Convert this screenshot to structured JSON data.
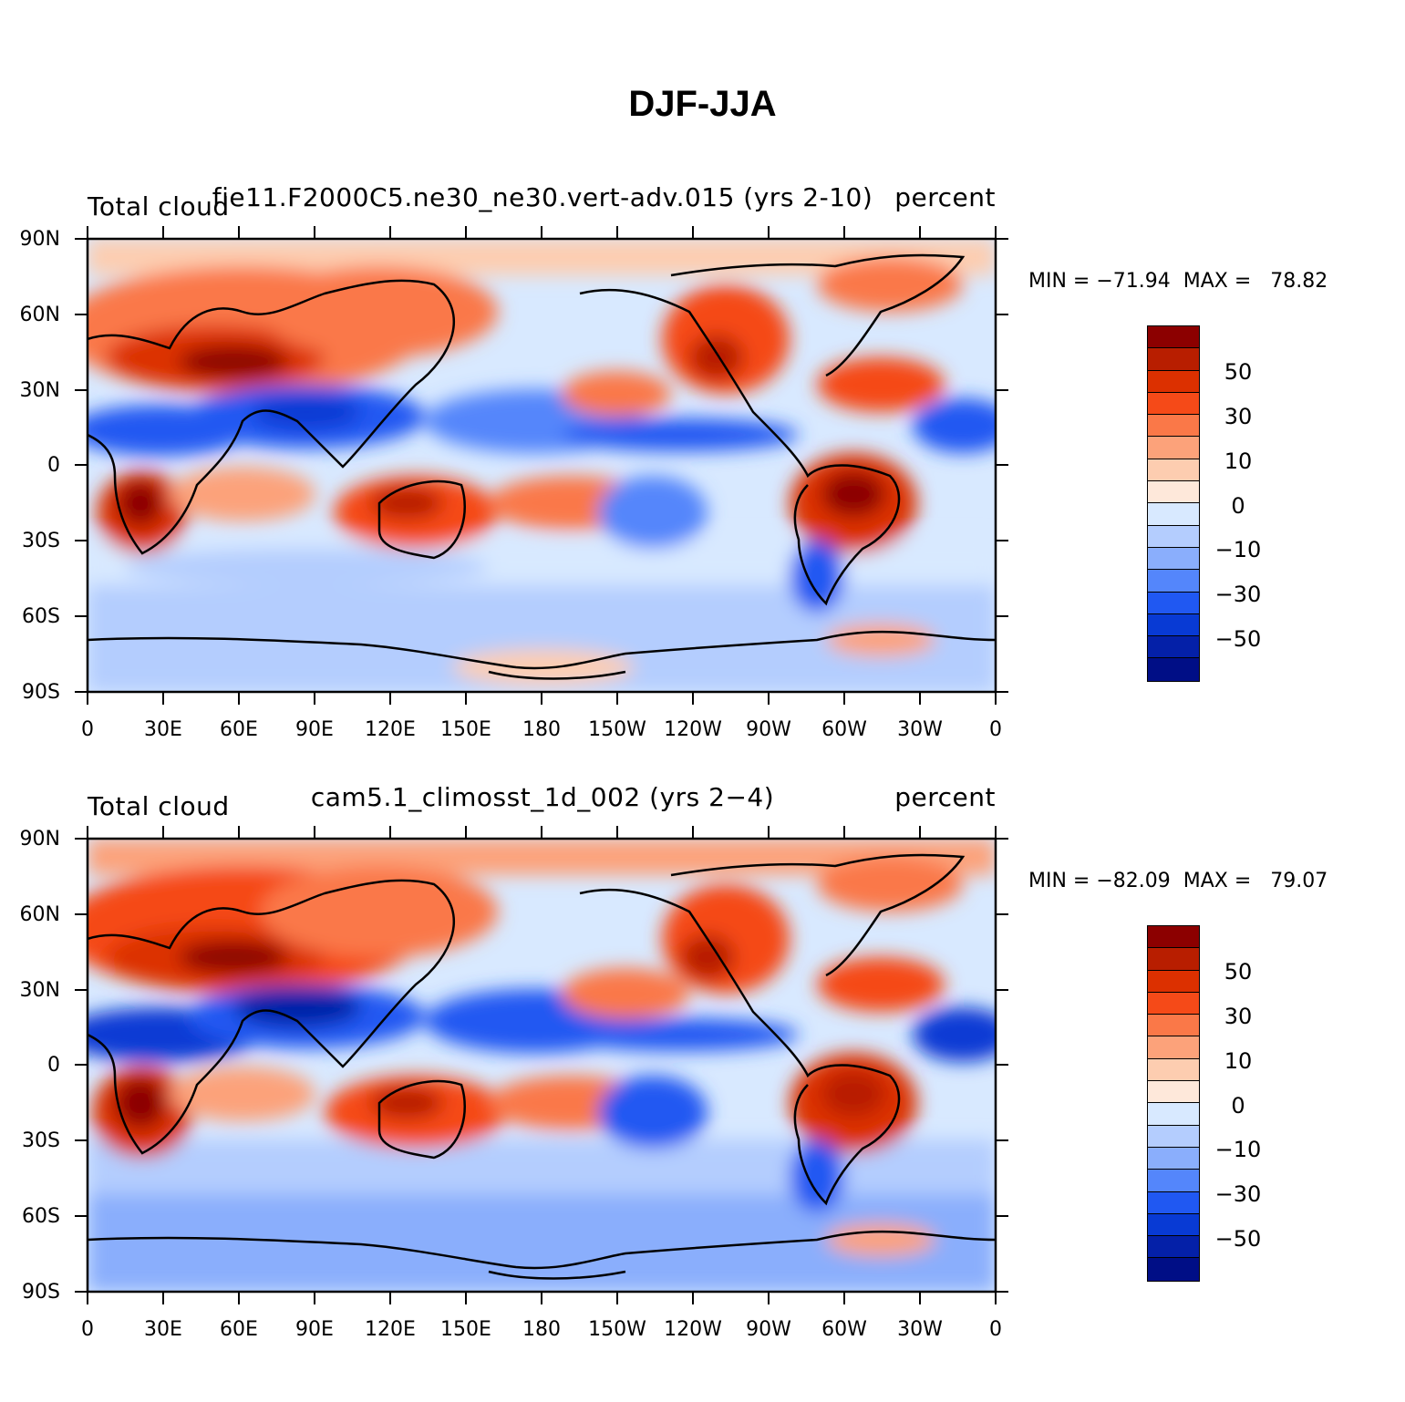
{
  "title": "DJF-JJA",
  "colorbar_colors": [
    "#8c0000",
    "#b81e00",
    "#dc3000",
    "#f54a18",
    "#fa7848",
    "#fca27a",
    "#fdcdb0",
    "#fee8da",
    "#d8e9ff",
    "#b4cdfe",
    "#8aaefc",
    "#5486fb",
    "#2058f2",
    "#083ad4",
    "#0420a8",
    "#000e86"
  ],
  "colorbar_labels": [
    "50",
    "30",
    "10",
    "0",
    "−10",
    "−30",
    "−50"
  ],
  "y_ticks": [
    "90N",
    "60N",
    "30N",
    "0",
    "30S",
    "60S",
    "90S"
  ],
  "x_ticks": [
    "0",
    "30E",
    "60E",
    "90E",
    "120E",
    "150E",
    "180",
    "150W",
    "120W",
    "90W",
    "60W",
    "30W",
    "0"
  ],
  "panels": [
    {
      "left_label": "Total cloud",
      "center_label": "fie11.F2000C5.ne30_ne30.vert-adv.015 (yrs 2-10)",
      "right_label": "percent",
      "minmax": "MIN = −71.94  MAX =   78.82"
    },
    {
      "left_label": "Total cloud",
      "center_label": "cam5.1_climosst_1d_002 (yrs 2−4)",
      "right_label": "percent",
      "minmax": "MIN = −82.09  MAX =   79.07"
    }
  ]
}
